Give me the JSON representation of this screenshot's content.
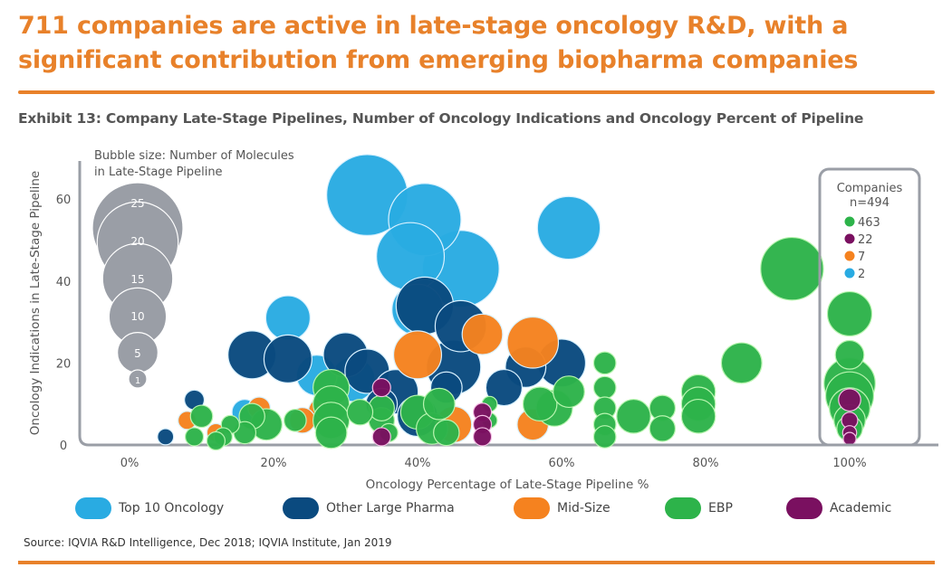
{
  "headline": "711 companies are active in late-stage oncology R&D, with a significant contribution from emerging biopharma companies",
  "exhibit_title": "Exhibit 13: Company Late-Stage Pipelines, Number of Oncology Indications and Oncology Percent of Pipeline",
  "source": "Source: IQVIA R&D Intelligence, Dec 2018; IQVIA Institute, Jan 2019",
  "colors": {
    "accent": "#e8812a",
    "Top 10 Oncology": "#29abe2",
    "Other Large Pharma": "#0a4a7f",
    "Mid-Size": "#f5821f",
    "EBP": "#2db34a",
    "Academic": "#7a1060",
    "bubble_key": "#9a9ea6",
    "axis": "#9a9ea6"
  },
  "size_key": {
    "title_line1": "Bubble size: Number of Molecules",
    "title_line2": "in Late-Stage Pipeline",
    "sizes": [
      25,
      20,
      15,
      10,
      5,
      1
    ]
  },
  "companies_box": {
    "title": "Companies",
    "n_label": "n=494",
    "items": [
      {
        "group": "EBP",
        "count": "463"
      },
      {
        "group": "Academic",
        "count": "22"
      },
      {
        "group": "Mid-Size",
        "count": "7"
      },
      {
        "group": "Top 10 Oncology",
        "count": "2"
      }
    ]
  },
  "chart_data": {
    "type": "scatter",
    "subtype": "bubble",
    "title": "Exhibit 13: Company Late-Stage Pipelines, Number of Oncology Indications and Oncology Percent of Pipeline",
    "xlabel": "Oncology Percentage of Late-Stage Pipeline %",
    "ylabel": "Oncology Indications in Late-Stage Pipeline",
    "xlim": [
      -5,
      110
    ],
    "ylim": [
      0,
      70
    ],
    "xticks": [
      0,
      20,
      40,
      60,
      80,
      100
    ],
    "xtick_labels": [
      "0%",
      "20%",
      "40%",
      "60%",
      "80%",
      "100%"
    ],
    "yticks": [
      0,
      20,
      40,
      60
    ],
    "ytick_labels": [
      "0",
      "20",
      "40",
      "60"
    ],
    "grid": false,
    "legend_position": "bottom",
    "size_meaning": "Number of Molecules in Late-Stage Pipeline",
    "series": [
      {
        "name": "Top 10 Oncology",
        "points": [
          [
            33,
            61,
            20
          ],
          [
            41,
            55,
            16
          ],
          [
            39,
            46,
            14
          ],
          [
            46,
            43,
            18
          ],
          [
            61,
            53,
            12
          ],
          [
            22,
            31,
            6
          ],
          [
            40,
            33,
            8
          ],
          [
            26,
            17,
            5
          ],
          [
            16,
            8,
            2
          ],
          [
            31,
            16,
            6
          ]
        ]
      },
      {
        "name": "Other Large Pharma",
        "points": [
          [
            17,
            22,
            7
          ],
          [
            22,
            21,
            7
          ],
          [
            30,
            22,
            6
          ],
          [
            33,
            18,
            6
          ],
          [
            41,
            34,
            10
          ],
          [
            46,
            29,
            8
          ],
          [
            45,
            19,
            9
          ],
          [
            37,
            13,
            6
          ],
          [
            40,
            7,
            5
          ],
          [
            55,
            19,
            5
          ],
          [
            60,
            20,
            7
          ],
          [
            9,
            11,
            1.2
          ],
          [
            5,
            2,
            0.8
          ],
          [
            35,
            10,
            3
          ],
          [
            52,
            14,
            4
          ],
          [
            44,
            14,
            3
          ]
        ]
      },
      {
        "name": "Mid-Size",
        "points": [
          [
            40,
            22,
            7
          ],
          [
            49,
            27,
            5
          ],
          [
            56,
            25,
            8
          ],
          [
            45,
            5,
            4
          ],
          [
            56,
            5,
            3
          ],
          [
            18,
            9,
            1.5
          ],
          [
            24,
            6,
            2
          ],
          [
            27,
            8,
            3
          ],
          [
            8,
            6,
            1
          ],
          [
            12,
            3,
            1
          ]
        ]
      },
      {
        "name": "EBP",
        "points": [
          [
            92,
            43,
            12
          ],
          [
            100,
            32,
            6
          ],
          [
            100,
            22,
            2.5
          ],
          [
            100,
            15,
            8
          ],
          [
            100,
            12,
            7
          ],
          [
            100,
            9,
            5
          ],
          [
            100,
            6,
            3
          ],
          [
            100,
            4,
            2
          ],
          [
            85,
            20,
            5
          ],
          [
            79,
            13,
            3.5
          ],
          [
            79,
            10,
            3.5
          ],
          [
            79,
            7,
            3.5
          ],
          [
            74,
            9,
            2
          ],
          [
            74,
            4,
            2
          ],
          [
            70,
            7,
            3.5
          ],
          [
            66,
            20,
            1.5
          ],
          [
            66,
            14,
            1.5
          ],
          [
            66,
            9,
            1.5
          ],
          [
            66,
            5,
            1.5
          ],
          [
            66,
            2,
            1.5
          ],
          [
            59,
            9,
            4
          ],
          [
            61,
            13,
            3
          ],
          [
            57,
            10,
            3.5
          ],
          [
            50,
            10,
            0.7
          ],
          [
            50,
            6,
            0.7
          ],
          [
            40,
            8,
            3.5
          ],
          [
            42,
            4,
            3
          ],
          [
            43,
            10,
            3
          ],
          [
            35,
            6,
            2
          ],
          [
            35,
            9,
            2
          ],
          [
            28,
            14,
            4
          ],
          [
            28,
            10,
            4
          ],
          [
            28,
            6,
            4
          ],
          [
            28,
            3,
            3
          ],
          [
            23,
            6,
            1.5
          ],
          [
            19,
            5,
            3
          ],
          [
            17,
            7,
            2
          ],
          [
            14,
            5,
            1
          ],
          [
            13,
            2,
            1
          ],
          [
            10,
            7,
            1.5
          ],
          [
            9,
            2,
            1
          ],
          [
            12,
            1,
            1
          ],
          [
            16,
            3,
            1.5
          ],
          [
            32,
            8,
            2
          ],
          [
            44,
            3,
            2
          ],
          [
            36,
            3,
            1
          ]
        ]
      },
      {
        "name": "Academic",
        "points": [
          [
            35,
            14,
            1
          ],
          [
            35,
            2,
            1
          ],
          [
            49,
            8,
            1
          ],
          [
            49,
            5,
            1
          ],
          [
            49,
            2,
            1
          ],
          [
            100,
            11,
            1.5
          ],
          [
            100,
            6,
            0.8
          ],
          [
            100,
            3,
            0.6
          ],
          [
            100,
            1.5,
            0.5
          ]
        ]
      }
    ]
  }
}
